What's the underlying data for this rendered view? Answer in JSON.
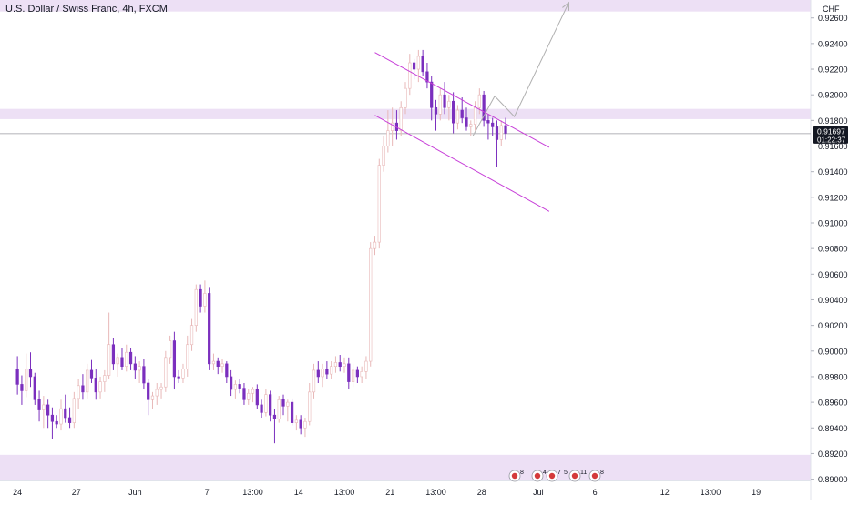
{
  "header": {
    "symbol_title": "U.S. Dollar / Swiss Franc, 4h, FXCM"
  },
  "price_axis": {
    "currency": "CHF"
  },
  "last_price": {
    "value": "0.91697",
    "countdown": "01:22:37",
    "level": 0.91697
  },
  "colors": {
    "bull_body": "#ffffff",
    "bull_outline": "#e8b8b8",
    "bear_body": "#7b2fbe",
    "zone_fill": "#ede0f5",
    "channel_line": "#c73fd8",
    "projection_line": "#b0b0b0",
    "price_line": "#9a9aa0",
    "price_label_bg": "#131722"
  },
  "events": [
    {
      "id": "ev1",
      "count": "8"
    },
    {
      "id": "ev2",
      "count": "4"
    },
    {
      "id": "ev3",
      "count": "3"
    },
    {
      "id": "ev4",
      "count": "7"
    },
    {
      "id": "ev5",
      "count": "5"
    },
    {
      "id": "ev6",
      "count": "11"
    },
    {
      "id": "ev7",
      "count": "8"
    }
  ],
  "chart_data": {
    "type": "candlestick",
    "title": "U.S. Dollar / Swiss Franc, 4h, FXCM",
    "y_axis": {
      "label": "CHF",
      "range": [
        0.8899,
        0.9274
      ],
      "ticks": [
        0.89,
        0.892,
        0.894,
        0.896,
        0.898,
        0.9,
        0.902,
        0.904,
        0.906,
        0.908,
        0.91,
        0.912,
        0.914,
        0.916,
        0.918,
        0.92,
        0.922,
        0.924,
        0.926
      ],
      "tick_labels": [
        "0.89000",
        "0.89200",
        "0.89400",
        "0.89600",
        "0.89800",
        "0.90000",
        "0.90200",
        "0.90400",
        "0.90600",
        "0.90800",
        "0.91000",
        "0.91200",
        "0.91400",
        "0.91600",
        "0.91800",
        "0.92000",
        "0.92200",
        "0.92400",
        "0.92600"
      ]
    },
    "x_axis": {
      "bar_range": [
        -4,
        182
      ],
      "ticks": [
        {
          "label": "24",
          "bar": 0
        },
        {
          "label": "27",
          "bar": 13.5
        },
        {
          "label": "Jun",
          "bar": 27
        },
        {
          "label": "7",
          "bar": 43.5
        },
        {
          "label": "13:00",
          "bar": 54
        },
        {
          "label": "14",
          "bar": 64.5
        },
        {
          "label": "13:00",
          "bar": 75
        },
        {
          "label": "21",
          "bar": 85.5
        },
        {
          "label": "13:00",
          "bar": 96
        },
        {
          "label": "28",
          "bar": 106.5
        },
        {
          "label": "Jul",
          "bar": 119.5
        },
        {
          "label": "6",
          "bar": 132.5
        },
        {
          "label": "12",
          "bar": 148.5
        },
        {
          "label": "13:00",
          "bar": 159
        },
        {
          "label": "19",
          "bar": 169.5
        }
      ]
    },
    "zones": [
      {
        "from": 0.9265,
        "to": 0.9282
      },
      {
        "from": 0.9181,
        "to": 0.9189
      },
      {
        "from": 0.8899,
        "to": 0.8919
      }
    ],
    "channel": [
      {
        "from": [
          82,
          0.9233
        ],
        "to": [
          122,
          0.9159
        ]
      },
      {
        "from": [
          82,
          0.9184
        ],
        "to": [
          122,
          0.9109
        ]
      }
    ],
    "projection": [
      [
        104.5,
        0.9168
      ],
      [
        109.5,
        0.9199
      ],
      [
        114,
        0.9183
      ],
      [
        126.5,
        0.9272
      ]
    ],
    "candles": [
      [
        0.8986,
        0.8996,
        0.8966,
        0.8974
      ],
      [
        0.8974,
        0.8981,
        0.8958,
        0.8969
      ],
      [
        0.8969,
        0.8998,
        0.8964,
        0.8986
      ],
      [
        0.8986,
        0.8999,
        0.8972,
        0.898
      ],
      [
        0.898,
        0.8983,
        0.8958,
        0.8962
      ],
      [
        0.8962,
        0.8969,
        0.8945,
        0.8954
      ],
      [
        0.8954,
        0.8965,
        0.894,
        0.8958
      ],
      [
        0.8958,
        0.8962,
        0.894,
        0.895
      ],
      [
        0.895,
        0.8956,
        0.8931,
        0.8945
      ],
      [
        0.8945,
        0.895,
        0.894,
        0.8943
      ],
      [
        0.8943,
        0.8962,
        0.8938,
        0.8955
      ],
      [
        0.8955,
        0.8966,
        0.8944,
        0.8948
      ],
      [
        0.8948,
        0.8956,
        0.894,
        0.8944
      ],
      [
        0.8944,
        0.8968,
        0.894,
        0.8963
      ],
      [
        0.8963,
        0.8978,
        0.8955,
        0.8973
      ],
      [
        0.8973,
        0.8982,
        0.8962,
        0.8968
      ],
      [
        0.8968,
        0.899,
        0.8963,
        0.8985
      ],
      [
        0.8985,
        0.8993,
        0.8975,
        0.8979
      ],
      [
        0.8979,
        0.8986,
        0.8962,
        0.8968
      ],
      [
        0.8968,
        0.898,
        0.8963,
        0.8976
      ],
      [
        0.8976,
        0.8985,
        0.8968,
        0.8981
      ],
      [
        0.8981,
        0.903,
        0.8978,
        0.9005
      ],
      [
        0.9005,
        0.901,
        0.8985,
        0.899
      ],
      [
        0.899,
        0.8998,
        0.898,
        0.8995
      ],
      [
        0.8995,
        0.9002,
        0.8985,
        0.8988
      ],
      [
        0.8988,
        0.9005,
        0.8984,
        0.8999
      ],
      [
        0.8999,
        0.9002,
        0.8985,
        0.899
      ],
      [
        0.899,
        0.8996,
        0.8978,
        0.8985
      ],
      [
        0.8985,
        0.8992,
        0.8975,
        0.8988
      ],
      [
        0.8988,
        0.8994,
        0.897,
        0.8975
      ],
      [
        0.8975,
        0.8978,
        0.895,
        0.8962
      ],
      [
        0.8962,
        0.8968,
        0.8955,
        0.8965
      ],
      [
        0.8965,
        0.8975,
        0.8958,
        0.897
      ],
      [
        0.897,
        0.8975,
        0.8963,
        0.8972
      ],
      [
        0.8972,
        0.9,
        0.8968,
        0.8995
      ],
      [
        0.8995,
        0.9012,
        0.899,
        0.9008
      ],
      [
        0.9008,
        0.9015,
        0.897,
        0.898
      ],
      [
        0.898,
        0.8985,
        0.8975,
        0.8979
      ],
      [
        0.8979,
        0.899,
        0.8975,
        0.8986
      ],
      [
        0.8986,
        0.9012,
        0.898,
        0.9005
      ],
      [
        0.9005,
        0.9025,
        0.9,
        0.902
      ],
      [
        0.902,
        0.9052,
        0.9015,
        0.9048
      ],
      [
        0.9048,
        0.9052,
        0.903,
        0.9035
      ],
      [
        0.9035,
        0.9055,
        0.903,
        0.9045
      ],
      [
        0.9045,
        0.905,
        0.8985,
        0.899
      ],
      [
        0.899,
        0.8998,
        0.8985,
        0.8992
      ],
      [
        0.8992,
        0.8995,
        0.8982,
        0.8988
      ],
      [
        0.8988,
        0.8994,
        0.8983,
        0.899
      ],
      [
        0.899,
        0.8992,
        0.8975,
        0.898
      ],
      [
        0.898,
        0.8985,
        0.8965,
        0.897
      ],
      [
        0.897,
        0.8977,
        0.8963,
        0.8974
      ],
      [
        0.8974,
        0.8978,
        0.8967,
        0.8971
      ],
      [
        0.8971,
        0.8975,
        0.8958,
        0.8962
      ],
      [
        0.8962,
        0.897,
        0.8958,
        0.8967
      ],
      [
        0.8967,
        0.8972,
        0.896,
        0.897
      ],
      [
        0.897,
        0.8974,
        0.8955,
        0.8958
      ],
      [
        0.8958,
        0.8962,
        0.8948,
        0.8952
      ],
      [
        0.8952,
        0.897,
        0.8949,
        0.8966
      ],
      [
        0.8966,
        0.8969,
        0.8945,
        0.895
      ],
      [
        0.895,
        0.8955,
        0.8928,
        0.8947
      ],
      [
        0.8947,
        0.8965,
        0.8944,
        0.8962
      ],
      [
        0.8962,
        0.8966,
        0.895,
        0.8957
      ],
      [
        0.8957,
        0.8962,
        0.8945,
        0.896
      ],
      [
        0.896,
        0.8963,
        0.8942,
        0.8944
      ],
      [
        0.8944,
        0.895,
        0.8938,
        0.8946
      ],
      [
        0.8946,
        0.895,
        0.8935,
        0.894
      ],
      [
        0.894,
        0.8948,
        0.8933,
        0.8945
      ],
      [
        0.8945,
        0.8975,
        0.8942,
        0.8968
      ],
      [
        0.8968,
        0.899,
        0.8963,
        0.8985
      ],
      [
        0.8985,
        0.8992,
        0.8975,
        0.898
      ],
      [
        0.898,
        0.899,
        0.8972,
        0.8986
      ],
      [
        0.8986,
        0.8992,
        0.8978,
        0.8982
      ],
      [
        0.8982,
        0.8992,
        0.8978,
        0.8988
      ],
      [
        0.8988,
        0.8996,
        0.8983,
        0.8991
      ],
      [
        0.8991,
        0.8997,
        0.8984,
        0.8988
      ],
      [
        0.8988,
        0.8995,
        0.8983,
        0.899
      ],
      [
        0.899,
        0.8995,
        0.897,
        0.8976
      ],
      [
        0.8976,
        0.899,
        0.8972,
        0.8985
      ],
      [
        0.8985,
        0.8988,
        0.8975,
        0.898
      ],
      [
        0.898,
        0.8988,
        0.8975,
        0.8984
      ],
      [
        0.8984,
        0.8996,
        0.8978,
        0.8992
      ],
      [
        0.8992,
        0.9085,
        0.8988,
        0.908
      ],
      [
        0.908,
        0.909,
        0.9075,
        0.9085
      ],
      [
        0.9085,
        0.915,
        0.908,
        0.9145
      ],
      [
        0.9145,
        0.9168,
        0.914,
        0.916
      ],
      [
        0.916,
        0.9188,
        0.9155,
        0.9172
      ],
      [
        0.9172,
        0.919,
        0.916,
        0.9178
      ],
      [
        0.9178,
        0.9188,
        0.9165,
        0.9172
      ],
      [
        0.9172,
        0.9195,
        0.9168,
        0.919
      ],
      [
        0.919,
        0.921,
        0.9185,
        0.9205
      ],
      [
        0.9205,
        0.9232,
        0.92,
        0.9225
      ],
      [
        0.9225,
        0.9228,
        0.9212,
        0.922
      ],
      [
        0.922,
        0.9235,
        0.921,
        0.923
      ],
      [
        0.923,
        0.9235,
        0.9215,
        0.9218
      ],
      [
        0.9218,
        0.9225,
        0.9205,
        0.921
      ],
      [
        0.921,
        0.9215,
        0.918,
        0.919
      ],
      [
        0.919,
        0.9196,
        0.9172,
        0.9185
      ],
      [
        0.9185,
        0.9205,
        0.918,
        0.92
      ],
      [
        0.92,
        0.921,
        0.9185,
        0.919
      ],
      [
        0.919,
        0.92,
        0.918,
        0.9195
      ],
      [
        0.9195,
        0.9202,
        0.917,
        0.9178
      ],
      [
        0.9178,
        0.9192,
        0.9173,
        0.9188
      ],
      [
        0.9188,
        0.9198,
        0.9178,
        0.9182
      ],
      [
        0.9182,
        0.919,
        0.9172,
        0.9175
      ],
      [
        0.9175,
        0.918,
        0.9168,
        0.9177
      ],
      [
        0.9177,
        0.9195,
        0.9172,
        0.919
      ],
      [
        0.919,
        0.9205,
        0.9185,
        0.92
      ],
      [
        0.92,
        0.9203,
        0.9175,
        0.918
      ],
      [
        0.918,
        0.9185,
        0.9165,
        0.9178
      ],
      [
        0.9178,
        0.9182,
        0.9168,
        0.9175
      ],
      [
        0.9175,
        0.918,
        0.9144,
        0.9165
      ],
      [
        0.9165,
        0.918,
        0.916,
        0.9176
      ],
      [
        0.9176,
        0.9182,
        0.9165,
        0.917
      ]
    ]
  }
}
